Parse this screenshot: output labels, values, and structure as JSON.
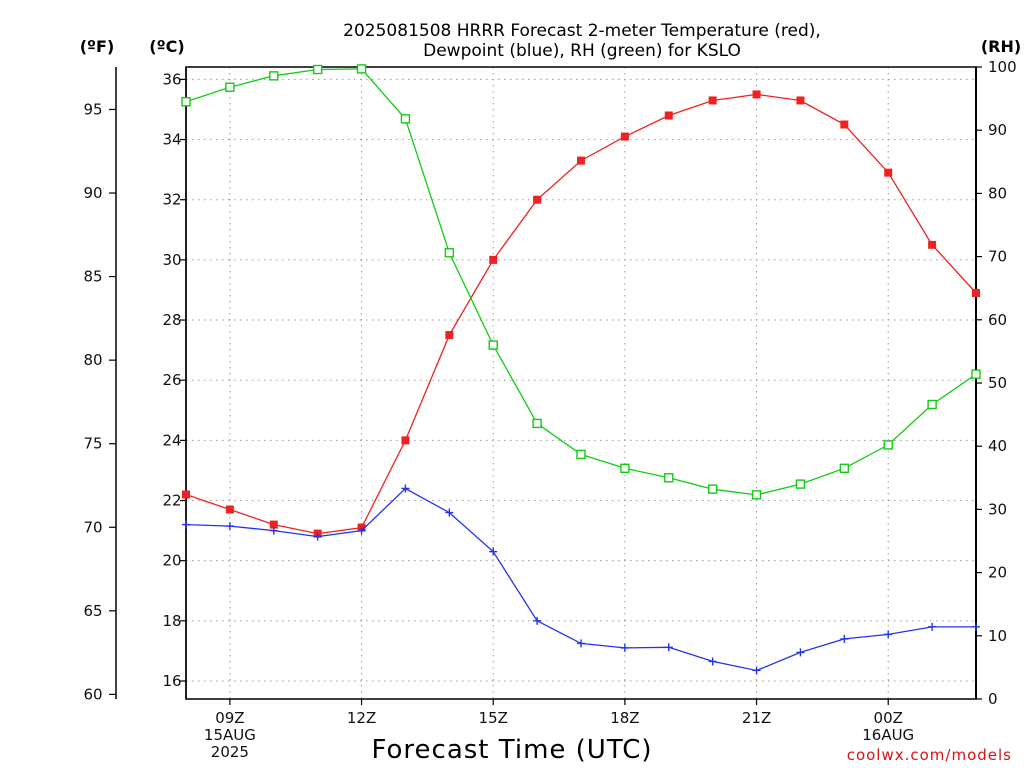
{
  "title_lines": [
    "2025081508 HRRR Forecast 2-meter Temperature (red),",
    "Dewpoint (blue), RH (green) for KSLO"
  ],
  "xlabel": "Forecast Time (UTC)",
  "credit": "coolwx.com/models",
  "units": {
    "fahrenheit": "(ºF)",
    "celsius": "(ºC)",
    "rh": "(RH)"
  },
  "colors": {
    "temperature": "#ee2222",
    "dewpoint": "#2233ee",
    "rh": "#11cc11"
  },
  "chart_data": {
    "type": "line",
    "title": "2025081508 HRRR Forecast 2-meter Temperature (red), Dewpoint (blue), RH (green) for KSLO",
    "x": [
      "08Z",
      "09Z",
      "10Z",
      "11Z",
      "12Z",
      "13Z",
      "14Z",
      "15Z",
      "16Z",
      "17Z",
      "18Z",
      "19Z",
      "20Z",
      "21Z",
      "22Z",
      "23Z",
      "00Z",
      "01Z",
      "02Z"
    ],
    "x_tick_labels": [
      {
        "hour": 1,
        "lines": [
          "09Z",
          "15AUG",
          "2025"
        ]
      },
      {
        "hour": 4,
        "lines": [
          "12Z"
        ]
      },
      {
        "hour": 7,
        "lines": [
          "15Z"
        ]
      },
      {
        "hour": 10,
        "lines": [
          "18Z"
        ]
      },
      {
        "hour": 13,
        "lines": [
          "21Z"
        ]
      },
      {
        "hour": 16,
        "lines": [
          "00Z",
          "16AUG"
        ]
      }
    ],
    "xlim": [
      0,
      18
    ],
    "left_axis_c": {
      "label": "(ºC)",
      "ylim": [
        15.4,
        36.4
      ],
      "ticks": [
        16,
        18,
        20,
        22,
        24,
        26,
        28,
        30,
        32,
        34,
        36
      ]
    },
    "left_axis_f": {
      "label": "(ºF)",
      "ticks": [
        60,
        65,
        70,
        75,
        80,
        85,
        90,
        95
      ]
    },
    "right_axis_rh": {
      "label": "(RH)",
      "ylim": [
        0,
        100
      ],
      "ticks": [
        0,
        10,
        20,
        30,
        40,
        50,
        60,
        70,
        80,
        90,
        100
      ]
    },
    "series": [
      {
        "name": "Temperature",
        "axis": "c",
        "marker": "filled-square",
        "values": [
          22.2,
          21.7,
          21.2,
          20.9,
          21.1,
          24.0,
          27.5,
          30.0,
          32.0,
          33.3,
          34.1,
          34.8,
          35.3,
          35.5,
          35.3,
          34.5,
          32.9,
          30.5,
          28.9
        ]
      },
      {
        "name": "Dewpoint",
        "axis": "c",
        "marker": "plus",
        "values": [
          21.2,
          21.15,
          21.0,
          20.8,
          21.0,
          22.4,
          21.6,
          20.3,
          18.0,
          17.25,
          17.1,
          17.12,
          16.65,
          16.35,
          16.95,
          17.4,
          17.55,
          17.8,
          17.8
        ]
      },
      {
        "name": "RH",
        "axis": "rh",
        "marker": "open-square",
        "values": [
          94.5,
          96.8,
          98.6,
          99.6,
          99.7,
          91.8,
          70.6,
          56.0,
          43.6,
          38.7,
          36.5,
          35.0,
          33.2,
          32.3,
          34.0,
          36.5,
          40.2,
          46.6,
          51.4
        ]
      }
    ]
  }
}
